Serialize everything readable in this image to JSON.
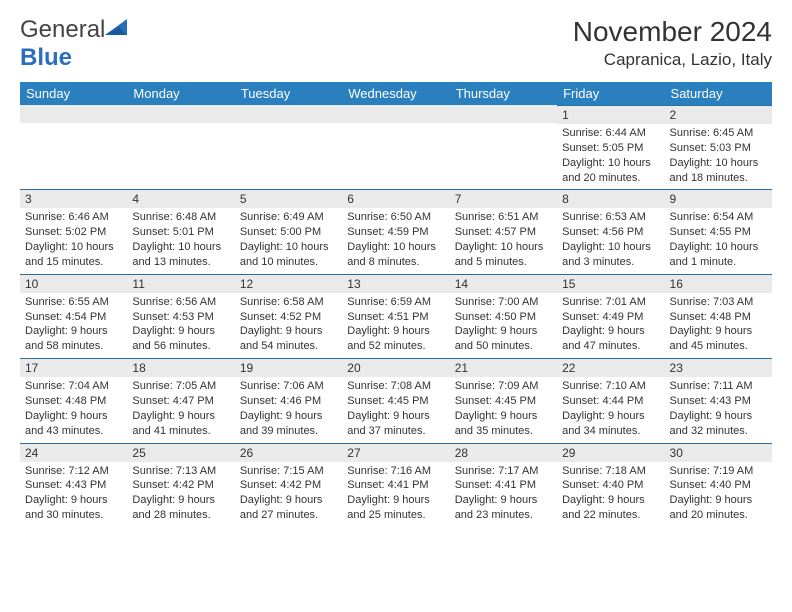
{
  "logo": {
    "text1": "General",
    "text2": "Blue"
  },
  "title": "November 2024",
  "location": "Capranica, Lazio, Italy",
  "colors": {
    "header_bg": "#2a7fbf",
    "header_text": "#ffffff",
    "daynum_bg": "#eaeaea",
    "daynum_border": "#2a6f9f",
    "text": "#333333",
    "logo_blue": "#2a6fbf"
  },
  "weekdays": [
    "Sunday",
    "Monday",
    "Tuesday",
    "Wednesday",
    "Thursday",
    "Friday",
    "Saturday"
  ],
  "weeks": [
    [
      null,
      null,
      null,
      null,
      null,
      {
        "n": "1",
        "sr": "Sunrise: 6:44 AM",
        "ss": "Sunset: 5:05 PM",
        "dl": "Daylight: 10 hours and 20 minutes."
      },
      {
        "n": "2",
        "sr": "Sunrise: 6:45 AM",
        "ss": "Sunset: 5:03 PM",
        "dl": "Daylight: 10 hours and 18 minutes."
      }
    ],
    [
      {
        "n": "3",
        "sr": "Sunrise: 6:46 AM",
        "ss": "Sunset: 5:02 PM",
        "dl": "Daylight: 10 hours and 15 minutes."
      },
      {
        "n": "4",
        "sr": "Sunrise: 6:48 AM",
        "ss": "Sunset: 5:01 PM",
        "dl": "Daylight: 10 hours and 13 minutes."
      },
      {
        "n": "5",
        "sr": "Sunrise: 6:49 AM",
        "ss": "Sunset: 5:00 PM",
        "dl": "Daylight: 10 hours and 10 minutes."
      },
      {
        "n": "6",
        "sr": "Sunrise: 6:50 AM",
        "ss": "Sunset: 4:59 PM",
        "dl": "Daylight: 10 hours and 8 minutes."
      },
      {
        "n": "7",
        "sr": "Sunrise: 6:51 AM",
        "ss": "Sunset: 4:57 PM",
        "dl": "Daylight: 10 hours and 5 minutes."
      },
      {
        "n": "8",
        "sr": "Sunrise: 6:53 AM",
        "ss": "Sunset: 4:56 PM",
        "dl": "Daylight: 10 hours and 3 minutes."
      },
      {
        "n": "9",
        "sr": "Sunrise: 6:54 AM",
        "ss": "Sunset: 4:55 PM",
        "dl": "Daylight: 10 hours and 1 minute."
      }
    ],
    [
      {
        "n": "10",
        "sr": "Sunrise: 6:55 AM",
        "ss": "Sunset: 4:54 PM",
        "dl": "Daylight: 9 hours and 58 minutes."
      },
      {
        "n": "11",
        "sr": "Sunrise: 6:56 AM",
        "ss": "Sunset: 4:53 PM",
        "dl": "Daylight: 9 hours and 56 minutes."
      },
      {
        "n": "12",
        "sr": "Sunrise: 6:58 AM",
        "ss": "Sunset: 4:52 PM",
        "dl": "Daylight: 9 hours and 54 minutes."
      },
      {
        "n": "13",
        "sr": "Sunrise: 6:59 AM",
        "ss": "Sunset: 4:51 PM",
        "dl": "Daylight: 9 hours and 52 minutes."
      },
      {
        "n": "14",
        "sr": "Sunrise: 7:00 AM",
        "ss": "Sunset: 4:50 PM",
        "dl": "Daylight: 9 hours and 50 minutes."
      },
      {
        "n": "15",
        "sr": "Sunrise: 7:01 AM",
        "ss": "Sunset: 4:49 PM",
        "dl": "Daylight: 9 hours and 47 minutes."
      },
      {
        "n": "16",
        "sr": "Sunrise: 7:03 AM",
        "ss": "Sunset: 4:48 PM",
        "dl": "Daylight: 9 hours and 45 minutes."
      }
    ],
    [
      {
        "n": "17",
        "sr": "Sunrise: 7:04 AM",
        "ss": "Sunset: 4:48 PM",
        "dl": "Daylight: 9 hours and 43 minutes."
      },
      {
        "n": "18",
        "sr": "Sunrise: 7:05 AM",
        "ss": "Sunset: 4:47 PM",
        "dl": "Daylight: 9 hours and 41 minutes."
      },
      {
        "n": "19",
        "sr": "Sunrise: 7:06 AM",
        "ss": "Sunset: 4:46 PM",
        "dl": "Daylight: 9 hours and 39 minutes."
      },
      {
        "n": "20",
        "sr": "Sunrise: 7:08 AM",
        "ss": "Sunset: 4:45 PM",
        "dl": "Daylight: 9 hours and 37 minutes."
      },
      {
        "n": "21",
        "sr": "Sunrise: 7:09 AM",
        "ss": "Sunset: 4:45 PM",
        "dl": "Daylight: 9 hours and 35 minutes."
      },
      {
        "n": "22",
        "sr": "Sunrise: 7:10 AM",
        "ss": "Sunset: 4:44 PM",
        "dl": "Daylight: 9 hours and 34 minutes."
      },
      {
        "n": "23",
        "sr": "Sunrise: 7:11 AM",
        "ss": "Sunset: 4:43 PM",
        "dl": "Daylight: 9 hours and 32 minutes."
      }
    ],
    [
      {
        "n": "24",
        "sr": "Sunrise: 7:12 AM",
        "ss": "Sunset: 4:43 PM",
        "dl": "Daylight: 9 hours and 30 minutes."
      },
      {
        "n": "25",
        "sr": "Sunrise: 7:13 AM",
        "ss": "Sunset: 4:42 PM",
        "dl": "Daylight: 9 hours and 28 minutes."
      },
      {
        "n": "26",
        "sr": "Sunrise: 7:15 AM",
        "ss": "Sunset: 4:42 PM",
        "dl": "Daylight: 9 hours and 27 minutes."
      },
      {
        "n": "27",
        "sr": "Sunrise: 7:16 AM",
        "ss": "Sunset: 4:41 PM",
        "dl": "Daylight: 9 hours and 25 minutes."
      },
      {
        "n": "28",
        "sr": "Sunrise: 7:17 AM",
        "ss": "Sunset: 4:41 PM",
        "dl": "Daylight: 9 hours and 23 minutes."
      },
      {
        "n": "29",
        "sr": "Sunrise: 7:18 AM",
        "ss": "Sunset: 4:40 PM",
        "dl": "Daylight: 9 hours and 22 minutes."
      },
      {
        "n": "30",
        "sr": "Sunrise: 7:19 AM",
        "ss": "Sunset: 4:40 PM",
        "dl": "Daylight: 9 hours and 20 minutes."
      }
    ]
  ]
}
